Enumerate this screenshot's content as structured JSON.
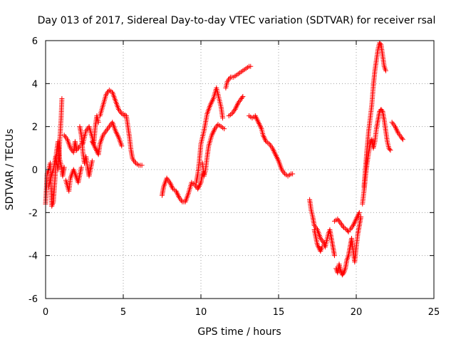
{
  "chart_data": {
    "type": "scatter",
    "title": "Day 013 of 2017, Sidereal Day-to-day VTEC variation (SDTVAR) for receiver rsal",
    "xlabel": "GPS time / hours",
    "ylabel": "SDTVAR / TECUs",
    "xlim": [
      0,
      25
    ],
    "ylim": [
      -6,
      6
    ],
    "xticks": [
      0,
      5,
      10,
      15,
      20,
      25
    ],
    "yticks": [
      -6,
      -4,
      -2,
      0,
      2,
      4,
      6
    ],
    "grid": true,
    "marker": "plus",
    "color": "#ff0000",
    "series": [
      {
        "segments": [
          [
            [
              0.0,
              -1.6
            ],
            [
              0.1,
              -0.2
            ],
            [
              0.2,
              0.0
            ],
            [
              0.3,
              0.3
            ],
            [
              0.35,
              -0.8
            ],
            [
              0.4,
              -1.7
            ],
            [
              0.5,
              -1.5
            ],
            [
              0.6,
              -0.5
            ],
            [
              0.7,
              0.8
            ],
            [
              0.8,
              1.3
            ],
            [
              0.9,
              0.5
            ],
            [
              1.0,
              0.2
            ],
            [
              1.1,
              -0.3
            ],
            [
              1.2,
              0.1
            ]
          ],
          [
            [
              0.2,
              -0.8
            ],
            [
              0.35,
              -0.3
            ],
            [
              0.5,
              0.0
            ],
            [
              0.65,
              0.6
            ],
            [
              0.8,
              0.0
            ],
            [
              0.9,
              1.2
            ],
            [
              1.0,
              2.4
            ],
            [
              1.05,
              3.3
            ]
          ],
          [
            [
              1.2,
              1.6
            ],
            [
              1.4,
              1.4
            ],
            [
              1.6,
              1.0
            ],
            [
              1.8,
              0.8
            ],
            [
              1.9,
              1.3
            ],
            [
              2.0,
              0.9
            ],
            [
              2.2,
              1.1
            ]
          ],
          [
            [
              1.3,
              -0.5
            ],
            [
              1.5,
              -1.0
            ],
            [
              1.6,
              -0.4
            ],
            [
              1.8,
              0.0
            ],
            [
              2.0,
              -0.4
            ],
            [
              2.1,
              -0.6
            ],
            [
              2.3,
              0.1
            ]
          ],
          [
            [
              2.2,
              2.0
            ],
            [
              2.3,
              1.6
            ],
            [
              2.4,
              0.8
            ],
            [
              2.5,
              0.3
            ],
            [
              2.6,
              0.6
            ],
            [
              2.7,
              0.1
            ],
            [
              2.8,
              -0.3
            ],
            [
              3.0,
              0.4
            ]
          ],
          [
            [
              2.4,
              1.2
            ],
            [
              2.6,
              1.8
            ],
            [
              2.8,
              2.0
            ],
            [
              3.0,
              1.5
            ],
            [
              3.1,
              1.2
            ],
            [
              3.2,
              2.0
            ],
            [
              3.3,
              2.5
            ],
            [
              3.4,
              2.2
            ]
          ],
          [
            [
              3.0,
              1.3
            ],
            [
              3.2,
              1.0
            ],
            [
              3.4,
              0.7
            ],
            [
              3.5,
              1.2
            ],
            [
              3.7,
              1.6
            ],
            [
              3.9,
              1.8
            ],
            [
              4.1,
              2.0
            ],
            [
              4.3,
              2.2
            ],
            [
              4.5,
              1.8
            ],
            [
              4.7,
              1.5
            ],
            [
              4.9,
              1.1
            ]
          ],
          [
            [
              3.5,
              2.5
            ],
            [
              3.7,
              3.0
            ],
            [
              3.9,
              3.5
            ],
            [
              4.1,
              3.7
            ],
            [
              4.3,
              3.6
            ],
            [
              4.5,
              3.2
            ],
            [
              4.7,
              2.8
            ],
            [
              4.9,
              2.6
            ],
            [
              5.1,
              2.5
            ]
          ],
          [
            [
              5.0,
              2.6
            ],
            [
              5.2,
              2.5
            ],
            [
              5.3,
              2.0
            ],
            [
              5.4,
              1.5
            ],
            [
              5.5,
              0.9
            ],
            [
              5.6,
              0.5
            ],
            [
              5.8,
              0.3
            ],
            [
              6.0,
              0.2
            ],
            [
              6.2,
              0.2
            ]
          ]
        ]
      },
      {
        "segments": [
          [
            [
              7.5,
              -1.2
            ],
            [
              7.6,
              -0.8
            ],
            [
              7.8,
              -0.4
            ],
            [
              8.0,
              -0.6
            ],
            [
              8.2,
              -0.9
            ],
            [
              8.4,
              -1.0
            ],
            [
              8.6,
              -1.3
            ],
            [
              8.8,
              -1.5
            ],
            [
              9.0,
              -1.5
            ],
            [
              9.2,
              -1.1
            ],
            [
              9.4,
              -0.6
            ],
            [
              9.6,
              -0.7
            ],
            [
              9.8,
              -0.9
            ],
            [
              10.0,
              -0.6
            ],
            [
              10.1,
              -0.2
            ],
            [
              10.2,
              -0.2
            ]
          ],
          [
            [
              9.7,
              -0.6
            ],
            [
              9.8,
              -0.2
            ],
            [
              9.9,
              0.4
            ],
            [
              10.0,
              1.2
            ],
            [
              10.2,
              1.8
            ],
            [
              10.4,
              2.6
            ],
            [
              10.6,
              3.0
            ],
            [
              10.8,
              3.3
            ],
            [
              11.0,
              3.8
            ],
            [
              11.1,
              3.5
            ],
            [
              11.3,
              2.9
            ],
            [
              11.4,
              2.4
            ]
          ],
          [
            [
              10.1,
              0.3
            ],
            [
              10.2,
              -0.3
            ],
            [
              10.3,
              0.0
            ],
            [
              10.4,
              0.6
            ],
            [
              10.5,
              1.1
            ],
            [
              10.7,
              1.6
            ],
            [
              10.9,
              1.9
            ],
            [
              11.1,
              2.1
            ],
            [
              11.3,
              2.0
            ],
            [
              11.5,
              1.9
            ]
          ],
          [
            [
              11.6,
              3.8
            ],
            [
              11.7,
              4.1
            ],
            [
              11.9,
              4.3
            ],
            [
              12.1,
              4.3
            ],
            [
              12.3,
              4.4
            ],
            [
              12.5,
              4.5
            ],
            [
              12.7,
              4.6
            ],
            [
              12.9,
              4.7
            ],
            [
              13.1,
              4.8
            ],
            [
              13.2,
              4.8
            ]
          ],
          [
            [
              11.8,
              2.5
            ],
            [
              12.0,
              2.6
            ],
            [
              12.2,
              2.8
            ],
            [
              12.4,
              3.1
            ],
            [
              12.6,
              3.3
            ],
            [
              12.7,
              3.4
            ]
          ],
          [
            [
              13.1,
              2.5
            ],
            [
              13.3,
              2.4
            ],
            [
              13.5,
              2.5
            ],
            [
              13.7,
              2.2
            ],
            [
              13.9,
              1.9
            ],
            [
              14.0,
              1.6
            ],
            [
              14.2,
              1.3
            ],
            [
              14.4,
              1.2
            ],
            [
              14.6,
              1.0
            ],
            [
              14.8,
              0.7
            ],
            [
              15.0,
              0.4
            ],
            [
              15.2,
              0.0
            ],
            [
              15.4,
              -0.2
            ],
            [
              15.6,
              -0.3
            ],
            [
              15.8,
              -0.2
            ],
            [
              15.9,
              -0.2
            ]
          ]
        ]
      },
      {
        "segments": [
          [
            [
              17.0,
              -1.4
            ],
            [
              17.1,
              -1.9
            ],
            [
              17.2,
              -2.2
            ],
            [
              17.3,
              -2.6
            ],
            [
              17.5,
              -2.8
            ],
            [
              17.7,
              -3.2
            ],
            [
              17.9,
              -3.4
            ],
            [
              18.0,
              -3.6
            ],
            [
              18.2,
              -3.0
            ],
            [
              18.3,
              -2.8
            ],
            [
              18.4,
              -3.2
            ],
            [
              18.5,
              -3.6
            ],
            [
              18.6,
              -4.0
            ]
          ],
          [
            [
              17.3,
              -2.8
            ],
            [
              17.5,
              -3.5
            ],
            [
              17.7,
              -3.8
            ],
            [
              17.8,
              -3.6
            ]
          ],
          [
            [
              18.6,
              -2.4
            ],
            [
              18.8,
              -2.3
            ],
            [
              19.0,
              -2.5
            ],
            [
              19.2,
              -2.7
            ],
            [
              19.4,
              -2.8
            ],
            [
              19.5,
              -2.9
            ]
          ],
          [
            [
              18.7,
              -4.6
            ],
            [
              18.8,
              -4.8
            ],
            [
              18.9,
              -4.4
            ],
            [
              19.0,
              -4.7
            ],
            [
              19.1,
              -4.9
            ],
            [
              19.2,
              -4.8
            ],
            [
              19.3,
              -4.6
            ],
            [
              19.4,
              -4.2
            ],
            [
              19.5,
              -4.0
            ],
            [
              19.6,
              -3.6
            ],
            [
              19.7,
              -3.2
            ],
            [
              19.8,
              -3.8
            ],
            [
              19.9,
              -4.3
            ],
            [
              20.0,
              -3.6
            ],
            [
              20.1,
              -3.0
            ],
            [
              20.2,
              -2.6
            ],
            [
              20.3,
              -2.2
            ]
          ],
          [
            [
              19.6,
              -2.8
            ],
            [
              19.8,
              -2.6
            ],
            [
              20.0,
              -2.3
            ],
            [
              20.2,
              -2.0
            ]
          ],
          [
            [
              20.4,
              -1.6
            ],
            [
              20.5,
              -1.0
            ],
            [
              20.6,
              -0.3
            ],
            [
              20.7,
              0.3
            ],
            [
              20.8,
              0.8
            ],
            [
              20.9,
              1.2
            ],
            [
              21.0,
              1.4
            ],
            [
              21.1,
              1.0
            ],
            [
              21.2,
              1.3
            ],
            [
              21.3,
              1.9
            ],
            [
              21.4,
              2.3
            ],
            [
              21.5,
              2.7
            ],
            [
              21.6,
              2.8
            ],
            [
              21.7,
              2.7
            ],
            [
              21.8,
              2.3
            ],
            [
              21.9,
              1.8
            ],
            [
              22.0,
              1.3
            ],
            [
              22.1,
              1.0
            ],
            [
              22.2,
              0.9
            ]
          ],
          [
            [
              20.5,
              -0.8
            ],
            [
              20.7,
              1.0
            ],
            [
              20.8,
              1.8
            ],
            [
              20.9,
              2.4
            ],
            [
              21.0,
              3.0
            ],
            [
              21.1,
              3.9
            ],
            [
              21.2,
              4.6
            ],
            [
              21.3,
              5.1
            ],
            [
              21.4,
              5.6
            ],
            [
              21.5,
              5.9
            ],
            [
              21.6,
              5.8
            ],
            [
              21.7,
              5.3
            ],
            [
              21.8,
              4.8
            ],
            [
              21.9,
              4.6
            ]
          ],
          [
            [
              22.3,
              2.2
            ],
            [
              22.5,
              2.0
            ],
            [
              22.7,
              1.7
            ],
            [
              22.9,
              1.5
            ],
            [
              23.0,
              1.4
            ]
          ]
        ]
      }
    ]
  }
}
